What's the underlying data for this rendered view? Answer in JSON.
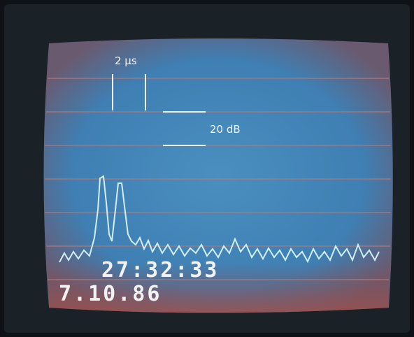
{
  "labels": {
    "time_scale": "2 μs",
    "amplitude_scale": "20 dB",
    "timestamp": "27:32:33",
    "date": "7.10.86"
  }
}
